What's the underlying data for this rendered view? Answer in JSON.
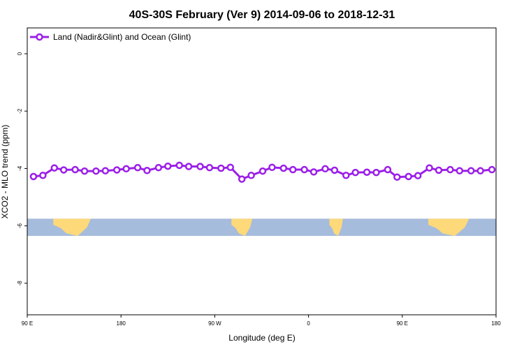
{
  "chart_data": {
    "type": "line",
    "title": "40S-30S February (Ver 9)   2014-09-06 to 2018-12-31",
    "xlabel": "Longitude (deg E)",
    "ylabel": "XCO2 - MLO trend (ppm)",
    "x_range_deg_east": [
      90,
      540
    ],
    "ylim": [
      -9.1,
      0.9
    ],
    "y_ticks": [
      0,
      -2,
      -4,
      -6,
      -8
    ],
    "y_tick_labels": [
      "0",
      "-2",
      "-4",
      "-6",
      "-8"
    ],
    "x_ticks": [
      90,
      180,
      270,
      360,
      450,
      540
    ],
    "x_tick_labels": [
      "90 E",
      "180",
      "90 W",
      "0",
      "90 E",
      "180"
    ],
    "legend": {
      "position": "top-left",
      "label": "Land (Nadir&Glint) and Ocean (Glint)"
    },
    "colors": {
      "series": "#9b1fe8",
      "ocean": "#a6bcdc",
      "land": "#fdd97a"
    },
    "series": [
      {
        "name": "Land (Nadir&Glint) and Ocean (Glint)",
        "x": [
          96,
          105,
          116,
          125,
          136,
          145,
          156,
          165,
          176,
          185,
          196,
          205,
          216,
          225,
          236,
          245,
          256,
          265,
          276,
          285,
          296,
          305,
          316,
          325,
          336,
          345,
          356,
          365,
          376,
          385,
          396,
          405,
          416,
          425,
          436,
          445,
          456,
          465,
          476,
          485,
          496,
          505,
          516,
          525,
          536
        ],
        "y": [
          -4.28,
          -4.24,
          -3.98,
          -4.05,
          -4.04,
          -4.09,
          -4.09,
          -4.08,
          -4.05,
          -4.01,
          -3.97,
          -4.07,
          -3.97,
          -3.92,
          -3.89,
          -3.93,
          -3.93,
          -3.97,
          -3.99,
          -3.96,
          -4.37,
          -4.24,
          -4.09,
          -3.96,
          -3.99,
          -4.04,
          -4.04,
          -4.12,
          -4.01,
          -4.06,
          -4.24,
          -4.14,
          -4.13,
          -4.14,
          -4.04,
          -4.3,
          -4.28,
          -4.25,
          -3.98,
          -4.06,
          -4.04,
          -4.08,
          -4.08,
          -4.08,
          -4.04
        ]
      }
    ],
    "map_strip": {
      "lat_range": "40S-30S",
      "y_range": [
        -5.75,
        -6.35
      ],
      "land_spans_deg_east": [
        [
          115,
          151
        ],
        [
          286,
          306
        ],
        [
          380,
          393
        ],
        [
          475,
          514
        ]
      ]
    }
  }
}
